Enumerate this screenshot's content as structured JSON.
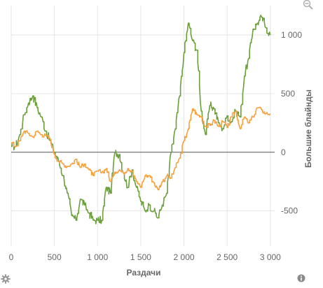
{
  "chart_data": {
    "type": "line",
    "xlabel": "Раздачи",
    "ylabel": "Большие блайнды",
    "xlim": [
      0,
      3050
    ],
    "ylim": [
      -800,
      1250
    ],
    "x_ticks": [
      0,
      500,
      1000,
      1500,
      2000,
      2500,
      3000
    ],
    "x_tick_labels": [
      "0",
      "500",
      "1 000",
      "1 500",
      "2 000",
      "2 500",
      "3 000"
    ],
    "y_ticks": [
      -500,
      0,
      500,
      1000
    ],
    "y_tick_labels": [
      "-500",
      "0",
      "500",
      "1 000"
    ],
    "y_axis_position": "right",
    "grid": true,
    "zero_line": true,
    "series": [
      {
        "color": "#6a9f3a",
        "x": [
          0,
          50,
          100,
          150,
          200,
          250,
          300,
          350,
          400,
          450,
          500,
          550,
          600,
          650,
          700,
          750,
          800,
          850,
          900,
          950,
          1000,
          1050,
          1100,
          1150,
          1200,
          1250,
          1300,
          1350,
          1400,
          1450,
          1500,
          1550,
          1600,
          1650,
          1700,
          1750,
          1800,
          1850,
          1900,
          1950,
          2000,
          2050,
          2100,
          2150,
          2200,
          2250,
          2300,
          2350,
          2400,
          2450,
          2500,
          2550,
          2600,
          2650,
          2700,
          2750,
          2800,
          2850,
          2900,
          2950,
          3000
        ],
        "y": [
          50,
          50,
          150,
          320,
          420,
          480,
          380,
          300,
          180,
          100,
          0,
          -80,
          -200,
          -350,
          -540,
          -580,
          -400,
          -450,
          -520,
          -580,
          -580,
          -580,
          -300,
          -350,
          0,
          -20,
          -180,
          -300,
          -150,
          -300,
          -420,
          -500,
          -450,
          -500,
          -560,
          -450,
          -350,
          0,
          200,
          480,
          850,
          1100,
          950,
          870,
          350,
          150,
          400,
          370,
          250,
          200,
          310,
          260,
          350,
          300,
          650,
          800,
          1050,
          1100,
          1150,
          1060,
          1000
        ]
      },
      {
        "color": "#f7a13e",
        "x": [
          0,
          50,
          100,
          150,
          200,
          250,
          300,
          350,
          400,
          450,
          500,
          550,
          600,
          650,
          700,
          750,
          800,
          850,
          900,
          950,
          1000,
          1050,
          1100,
          1150,
          1200,
          1250,
          1300,
          1350,
          1400,
          1450,
          1500,
          1550,
          1600,
          1650,
          1700,
          1750,
          1800,
          1850,
          1900,
          1950,
          2000,
          2050,
          2100,
          2150,
          2200,
          2250,
          2300,
          2350,
          2400,
          2450,
          2500,
          2550,
          2600,
          2650,
          2700,
          2750,
          2800,
          2850,
          2900,
          2950,
          3000
        ],
        "y": [
          80,
          50,
          100,
          180,
          160,
          130,
          180,
          150,
          140,
          110,
          -20,
          -80,
          -100,
          -120,
          -100,
          -60,
          -130,
          -100,
          -150,
          -200,
          -160,
          -170,
          -140,
          -250,
          -170,
          -150,
          -180,
          -140,
          -160,
          -250,
          -300,
          -200,
          -200,
          -260,
          -320,
          -250,
          -200,
          -220,
          -130,
          -50,
          100,
          200,
          370,
          320,
          300,
          220,
          230,
          270,
          220,
          260,
          210,
          300,
          350,
          200,
          300,
          250,
          300,
          380,
          360,
          330,
          330
        ]
      }
    ]
  },
  "toolbar": {
    "zoom_icon": "magnifier-minus-icon",
    "settings_icon": "gear-icon",
    "info_icon": "info-icon"
  },
  "colors": {
    "green_series": "#6a9f3a",
    "orange_series": "#f7a13e",
    "grid": "#e6e6e6",
    "axis_text": "#666666"
  }
}
